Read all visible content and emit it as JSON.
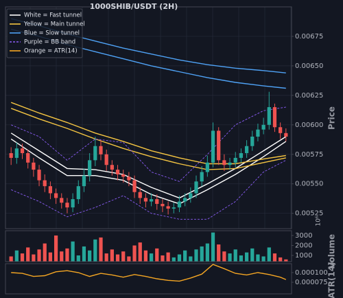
{
  "chart_data": [
    {
      "type": "candlestick",
      "title": "1000SHIB/USDT (2H)",
      "y_label": "Price",
      "xlim": [
        -1,
        50
      ],
      "ylim": [
        0.00512,
        0.007
      ],
      "yticks": [
        0.00525,
        {
          "value": 0.0055,
          "label": "0.00550"
        },
        0.00575,
        {
          "value": 0.006,
          "label": "0.00600"
        },
        0.00625,
        {
          "value": 0.0065,
          "label": "0.00650"
        },
        0.00675
      ],
      "grid": true,
      "legend": "upper left",
      "up_color": "#26a69a",
      "down_color": "#ef5350",
      "candles": {
        "open": [
          0.00576,
          0.00572,
          0.0058,
          0.00576,
          0.00568,
          0.00562,
          0.00553,
          0.00548,
          0.00542,
          0.00538,
          0.00534,
          0.0053,
          0.00537,
          0.00548,
          0.00557,
          0.0057,
          0.00582,
          0.00575,
          0.00566,
          0.00562,
          0.00558,
          0.00556,
          0.00553,
          0.00543,
          0.00538,
          0.00535,
          0.00537,
          0.00533,
          0.00531,
          0.00529,
          0.0053,
          0.00535,
          0.00538,
          0.00542,
          0.00552,
          0.0056,
          0.00568,
          0.00595,
          0.0057,
          0.00566,
          0.00568,
          0.00572,
          0.00576,
          0.00582,
          0.0059,
          0.00596,
          0.006,
          0.00615,
          0.00598,
          0.00593
        ],
        "high": [
          0.00581,
          0.00585,
          0.00584,
          0.00579,
          0.00572,
          0.00566,
          0.00558,
          0.00552,
          0.00546,
          0.00542,
          0.00538,
          0.00542,
          0.00553,
          0.00563,
          0.00576,
          0.0059,
          0.00587,
          0.00579,
          0.0057,
          0.00566,
          0.00562,
          0.0056,
          0.00557,
          0.00547,
          0.00542,
          0.00542,
          0.00541,
          0.00537,
          0.00535,
          0.00534,
          0.0054,
          0.00542,
          0.00547,
          0.00557,
          0.00565,
          0.00574,
          0.00602,
          0.00598,
          0.00575,
          0.00572,
          0.00577,
          0.0058,
          0.00587,
          0.00595,
          0.00601,
          0.00606,
          0.00628,
          0.00618,
          0.00602,
          0.00597
        ],
        "low": [
          0.00566,
          0.00567,
          0.00571,
          0.00563,
          0.00556,
          0.00548,
          0.00543,
          0.00537,
          0.00533,
          0.00529,
          0.00525,
          0.00526,
          0.00533,
          0.00543,
          0.00552,
          0.00565,
          0.0057,
          0.00561,
          0.00557,
          0.00553,
          0.00551,
          0.00548,
          0.00538,
          0.00533,
          0.0053,
          0.00531,
          0.00528,
          0.00526,
          0.00524,
          0.00525,
          0.00526,
          0.00531,
          0.00534,
          0.00538,
          0.00548,
          0.00556,
          0.00564,
          0.00566,
          0.00561,
          0.00562,
          0.00564,
          0.00568,
          0.00572,
          0.00578,
          0.00586,
          0.00592,
          0.00596,
          0.00594,
          0.00588,
          0.00586
        ],
        "close": [
          0.00572,
          0.0058,
          0.00576,
          0.00568,
          0.00562,
          0.00553,
          0.00548,
          0.00542,
          0.00538,
          0.00534,
          0.0053,
          0.00537,
          0.00548,
          0.00557,
          0.0057,
          0.00582,
          0.00575,
          0.00566,
          0.00562,
          0.00558,
          0.00556,
          0.00553,
          0.00543,
          0.00538,
          0.00535,
          0.00537,
          0.00533,
          0.00531,
          0.00529,
          0.0053,
          0.00535,
          0.00538,
          0.00542,
          0.00552,
          0.0056,
          0.00568,
          0.00595,
          0.0057,
          0.00566,
          0.00568,
          0.00572,
          0.00576,
          0.00582,
          0.0059,
          0.00596,
          0.006,
          0.00615,
          0.00598,
          0.00593,
          0.0059
        ]
      },
      "series": [
        {
          "name": "White = Fast tunnel",
          "color": "#ffffff",
          "style": "solid",
          "x": [
            0,
            5,
            10,
            15,
            20,
            25,
            30,
            35,
            40,
            45,
            49
          ],
          "upper": [
            0.00593,
            0.00578,
            0.00563,
            0.00562,
            0.00558,
            0.00547,
            0.00538,
            0.0055,
            0.00563,
            0.00578,
            0.0059
          ],
          "lower": [
            0.00588,
            0.00572,
            0.00557,
            0.00557,
            0.00553,
            0.00541,
            0.00533,
            0.00545,
            0.00558,
            0.00573,
            0.00586
          ]
        },
        {
          "name": "Yellow = Main tunnel",
          "color": "#f5c542",
          "style": "solid",
          "x": [
            0,
            5,
            10,
            15,
            20,
            25,
            30,
            35,
            40,
            45,
            49
          ],
          "upper": [
            0.00619,
            0.0061,
            0.00602,
            0.00593,
            0.00586,
            0.00578,
            0.00572,
            0.00567,
            0.00567,
            0.00571,
            0.00574
          ],
          "lower": [
            0.00614,
            0.00605,
            0.00597,
            0.00588,
            0.0058,
            0.00573,
            0.00567,
            0.00562,
            0.00563,
            0.00568,
            0.00572
          ]
        },
        {
          "name": "Blue = Slow tunnel",
          "color": "#4fa3f7",
          "style": "solid",
          "x": [
            0,
            5,
            10,
            15,
            20,
            25,
            30,
            35,
            40,
            45,
            49
          ],
          "upper": [
            0.0069,
            0.00684,
            0.00677,
            0.00671,
            0.00665,
            0.0066,
            0.00655,
            0.00651,
            0.00648,
            0.00646,
            0.00644
          ],
          "lower": [
            0.00681,
            0.00675,
            0.00668,
            0.00662,
            0.00656,
            0.0065,
            0.00645,
            0.0064,
            0.00636,
            0.00633,
            0.00631
          ]
        },
        {
          "name": "Purple = BB band",
          "color": "#8a5cf5",
          "style": "dashed",
          "x": [
            0,
            5,
            10,
            15,
            20,
            25,
            30,
            35,
            40,
            45,
            49
          ],
          "upper": [
            0.006,
            0.0059,
            0.0057,
            0.00588,
            0.00585,
            0.0056,
            0.00552,
            0.00575,
            0.006,
            0.00612,
            0.00615
          ],
          "lower": [
            0.00545,
            0.00535,
            0.00522,
            0.0053,
            0.0054,
            0.00525,
            0.0052,
            0.0052,
            0.00535,
            0.0056,
            0.0057
          ]
        }
      ]
    },
    {
      "type": "bar",
      "y_label": "Volume",
      "y_unit": "10⁶",
      "xlim": [
        -1,
        50
      ],
      "ylim": [
        380,
        3480
      ],
      "yticks": [
        1000,
        2000,
        3000
      ],
      "values": [
        900,
        1500,
        1200,
        1800,
        1100,
        1600,
        2200,
        1300,
        3000,
        1400,
        1700,
        2400,
        1000,
        1900,
        1500,
        2600,
        2800,
        1200,
        1600,
        1100,
        1400,
        900,
        2000,
        2300,
        1500,
        1200,
        1700,
        1000,
        1300,
        800,
        1100,
        1500,
        900,
        1600,
        1900,
        2200,
        3300,
        2100,
        1400,
        1200,
        1600,
        1000,
        1300,
        1700,
        1100,
        900,
        1800,
        1200,
        800,
        600
      ]
    },
    {
      "type": "line",
      "y_label": "ATR(14)",
      "xlim": [
        -1,
        50
      ],
      "ylim": [
        4.5e-05,
        0.000123
      ],
      "yticks": [
        7.5e-05,
        {
          "value": 0.0001,
          "label": "0.000100"
        }
      ],
      "series": [
        {
          "name": "Orange = ATR(14)",
          "color": "#f5a623",
          "style": "solid",
          "x": [
            0,
            2,
            4,
            6,
            8,
            10,
            12,
            14,
            16,
            18,
            20,
            22,
            24,
            26,
            28,
            30,
            32,
            34,
            36,
            38,
            40,
            42,
            44,
            46,
            48,
            49
          ],
          "values": [
            0.0001,
            9.8e-05,
            9e-05,
            9.2e-05,
            0.000102,
            0.000105,
            0.0001,
            9e-05,
            9.8e-05,
            9.4e-05,
            8.8e-05,
            9.5e-05,
            9e-05,
            8.4e-05,
            8e-05,
            7.8e-05,
            8.6e-05,
            9.6e-05,
            0.000121,
            0.00011,
            9.8e-05,
            9.4e-05,
            0.0001,
            9.5e-05,
            8.8e-05,
            8.2e-05
          ]
        }
      ]
    }
  ]
}
